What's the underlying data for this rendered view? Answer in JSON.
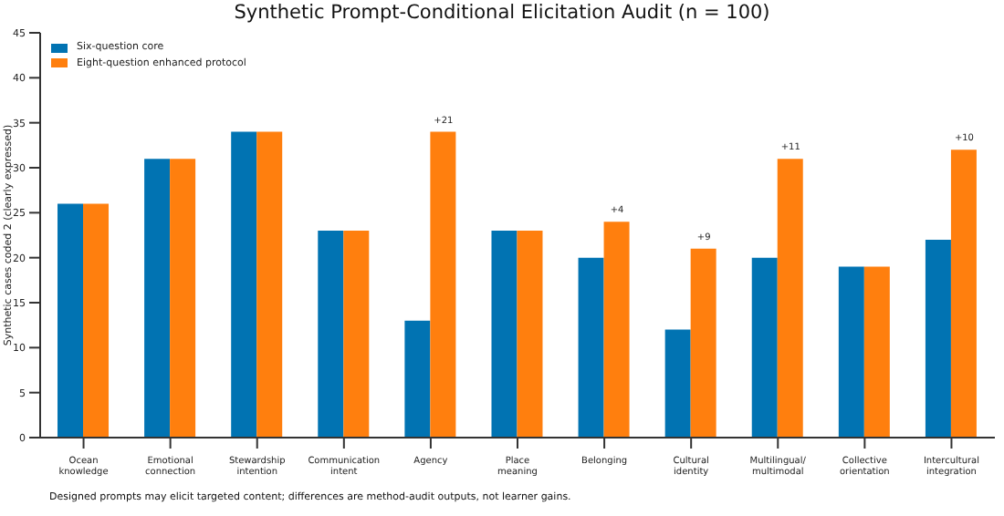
{
  "chart_data": {
    "type": "bar",
    "title": "Synthetic Prompt-Conditional Elicitation Audit (n = 100)",
    "ylabel": "Synthetic cases coded 2 (clearly expressed)",
    "categories": [
      "Ocean\nknowledge",
      "Emotional\nconnection",
      "Stewardship\nintention",
      "Communication\nintent",
      "Agency",
      "Place\nmeaning",
      "Belonging",
      "Cultural\nidentity",
      "Multilingual/\nmultimodal",
      "Collective\norientation",
      "Intercultural\nintegration"
    ],
    "series": [
      {
        "name": "Six-question core",
        "color": "#0173b2",
        "values": [
          26,
          31,
          34,
          23,
          13,
          23,
          20,
          12,
          20,
          19,
          22
        ]
      },
      {
        "name": "Eight-question enhanced protocol",
        "color": "#ff7f0e",
        "values": [
          26,
          31,
          34,
          23,
          34,
          23,
          24,
          21,
          31,
          19,
          32
        ]
      }
    ],
    "ylim": [
      0,
      45
    ],
    "yticks": [
      0,
      5,
      10,
      15,
      20,
      25,
      30,
      35,
      40,
      45
    ],
    "grid": false,
    "legend": "top left",
    "annotations": [
      {
        "text": "+21",
        "x": "Agency",
        "y": 34
      },
      {
        "text": "+4",
        "x": "Belonging",
        "y": 24
      },
      {
        "text": "+9",
        "x": "Cultural\nidentity",
        "y": 21
      },
      {
        "text": "+11",
        "x": "Multilingual/\nmultimodal",
        "y": 31
      },
      {
        "text": "+10",
        "x": "Intercultural\nintegration",
        "y": 32
      },
      "Designed prompts may elicit targeted content; differences are method-audit outputs, not learner gains."
    ]
  }
}
